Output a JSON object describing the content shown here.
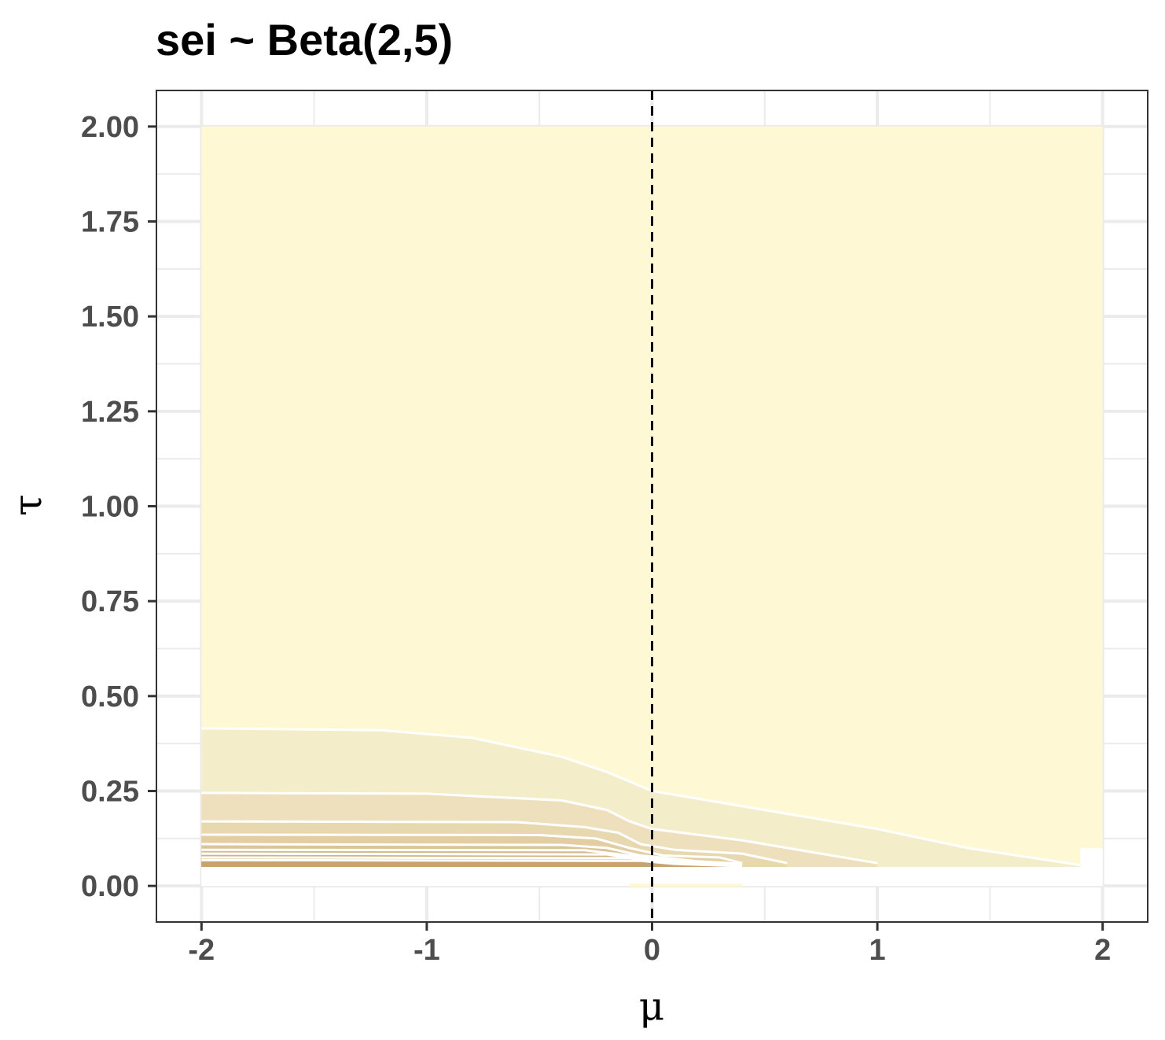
{
  "chart_data": {
    "type": "contour",
    "title": "sei ~ Beta(2,5)",
    "xlabel": "μ",
    "ylabel": "τ",
    "xlim": [
      -2.2,
      2.2
    ],
    "ylim": [
      -0.095,
      2.095
    ],
    "x_ticks": [
      -2,
      -1,
      0,
      1,
      2
    ],
    "x_tick_labels": [
      "-2",
      "-1",
      "0",
      "1",
      "2"
    ],
    "y_ticks": [
      0,
      0.25,
      0.5,
      0.75,
      1.0,
      1.25,
      1.5,
      1.75,
      2.0
    ],
    "y_tick_labels": [
      "0.00",
      "0.25",
      "0.50",
      "0.75",
      "1.00",
      "1.25",
      "1.50",
      "1.75",
      "2.00"
    ],
    "grid": true,
    "legend": "none",
    "grid_extent": {
      "x": [
        -2,
        2
      ],
      "y": [
        0,
        2
      ]
    },
    "reference_line": {
      "axis": "x",
      "value": 0,
      "style": "dashed",
      "color": "#000000"
    },
    "background_fill": "#fef9d4",
    "contour_line_color": "#ffffff",
    "bands": [
      {
        "fill": "#f4edca",
        "upper": [
          [
            -2,
            0.415
          ],
          [
            -1.2,
            0.41
          ],
          [
            -0.8,
            0.39
          ],
          [
            -0.4,
            0.34
          ],
          [
            -0.2,
            0.3
          ],
          [
            0,
            0.25
          ],
          [
            0.5,
            0.2
          ],
          [
            1.0,
            0.15
          ],
          [
            1.4,
            0.1
          ],
          [
            1.9,
            0.055
          ]
        ]
      },
      {
        "fill": "#eee0bc",
        "upper": [
          [
            -2,
            0.245
          ],
          [
            -1.0,
            0.243
          ],
          [
            -0.4,
            0.225
          ],
          [
            -0.2,
            0.2
          ],
          [
            -0.1,
            0.17
          ],
          [
            0,
            0.15
          ],
          [
            0.4,
            0.12
          ],
          [
            0.7,
            0.09
          ],
          [
            1.0,
            0.06
          ]
        ]
      },
      {
        "fill": "#e8d8b0",
        "upper": [
          [
            -2,
            0.17
          ],
          [
            -0.6,
            0.168
          ],
          [
            -0.3,
            0.155
          ],
          [
            -0.15,
            0.14
          ],
          [
            -0.05,
            0.11
          ],
          [
            0.1,
            0.095
          ],
          [
            0.4,
            0.085
          ],
          [
            0.6,
            0.06
          ]
        ]
      },
      {
        "fill": "#e2ceа2",
        "upper": [
          [
            -2,
            0.135
          ],
          [
            -0.5,
            0.134
          ],
          [
            -0.25,
            0.125
          ],
          [
            -0.1,
            0.1
          ],
          [
            0.05,
            0.08
          ],
          [
            0.3,
            0.075
          ],
          [
            0.4,
            0.06
          ]
        ]
      },
      {
        "fill": "#dbc597",
        "upper": [
          [
            -2,
            0.11
          ],
          [
            -0.4,
            0.108
          ],
          [
            -0.2,
            0.1
          ],
          [
            -0.05,
            0.08
          ],
          [
            0.2,
            0.065
          ],
          [
            0.4,
            0.058
          ]
        ]
      },
      {
        "fill": "#d6bc8c",
        "upper": [
          [
            -2,
            0.095
          ],
          [
            -0.3,
            0.094
          ],
          [
            -0.1,
            0.08
          ],
          [
            0.1,
            0.065
          ],
          [
            0.4,
            0.056
          ]
        ]
      },
      {
        "fill": "#d0b482",
        "upper": [
          [
            -2,
            0.085
          ],
          [
            -0.2,
            0.083
          ],
          [
            -0.05,
            0.07
          ],
          [
            0.2,
            0.06
          ],
          [
            0.4,
            0.055
          ]
        ]
      },
      {
        "fill": "#cbac78",
        "upper": [
          [
            -2,
            0.075
          ],
          [
            -0.1,
            0.073
          ],
          [
            0.05,
            0.062
          ],
          [
            0.4,
            0.054
          ]
        ]
      },
      {
        "fill": "#c6a46e",
        "upper": [
          [
            -2,
            0.068
          ],
          [
            -0.05,
            0.066
          ],
          [
            0.1,
            0.058
          ],
          [
            0.4,
            0.052
          ]
        ]
      }
    ],
    "empty_strip": {
      "y": [
        0,
        0.05
      ],
      "fill": "#ffffff"
    },
    "corner_gap": {
      "x": [
        1.9,
        2.0
      ],
      "y": [
        0.05,
        0.1
      ]
    }
  }
}
